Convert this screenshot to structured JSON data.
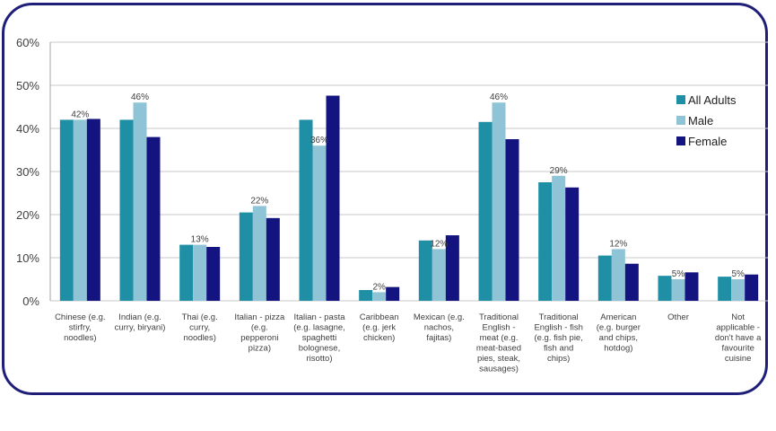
{
  "chart_data": {
    "type": "bar",
    "title": "",
    "xlabel": "",
    "ylabel": "",
    "ylim": [
      0,
      60
    ],
    "y_ticks": [
      "0%",
      "10%",
      "20%",
      "30%",
      "40%",
      "50%",
      "60%"
    ],
    "grid": true,
    "legend_position": "right",
    "categories": [
      [
        "Chinese (e.g.",
        "stirfry,",
        "noodles)"
      ],
      [
        "Indian (e.g.",
        "curry, biryani)"
      ],
      [
        "Thai (e.g.",
        "curry,",
        "noodles)"
      ],
      [
        "Italian - pizza",
        "(e.g.",
        "pepperoni",
        "pizza)"
      ],
      [
        "Italian - pasta",
        "(e.g. lasagne,",
        "spaghetti",
        "bolognese,",
        "risotto)"
      ],
      [
        "Caribbean",
        "(e.g. jerk",
        "chicken)"
      ],
      [
        "Mexican (e.g.",
        "nachos,",
        "fajitas)"
      ],
      [
        "Traditional",
        "English -",
        "meat (e.g.",
        "meat-based",
        "pies, steak,",
        "sausages)"
      ],
      [
        "Traditional",
        "English - fish",
        "(e.g. fish pie,",
        "fish and",
        "chips)"
      ],
      [
        "American",
        "(e.g. burger",
        "and chips,",
        "hotdog)"
      ],
      [
        "Other"
      ],
      [
        "Not",
        "applicable -",
        "don't have a",
        "favourite",
        "cuisine"
      ]
    ],
    "series": [
      {
        "name": "All Adults",
        "color": "#1f8fa6",
        "values": [
          42,
          42,
          13,
          20.5,
          42,
          2.5,
          14,
          41.5,
          27.5,
          10.5,
          5.8,
          5.6
        ]
      },
      {
        "name": "Male",
        "color": "#8fc4d6",
        "values": [
          42,
          46,
          13,
          22,
          36,
          2,
          12,
          46,
          29,
          12,
          5,
          5
        ]
      },
      {
        "name": "Female",
        "color": "#141480",
        "values": [
          42.2,
          38,
          12.5,
          19.2,
          47.6,
          3.2,
          15.2,
          37.5,
          26.3,
          8.6,
          6.6,
          6.1
        ]
      }
    ],
    "data_labels": [
      "42%",
      "46%",
      "13%",
      "22%",
      "36%",
      "2%",
      "12%",
      "46%",
      "29%",
      "12%",
      "5%",
      "5%"
    ]
  }
}
